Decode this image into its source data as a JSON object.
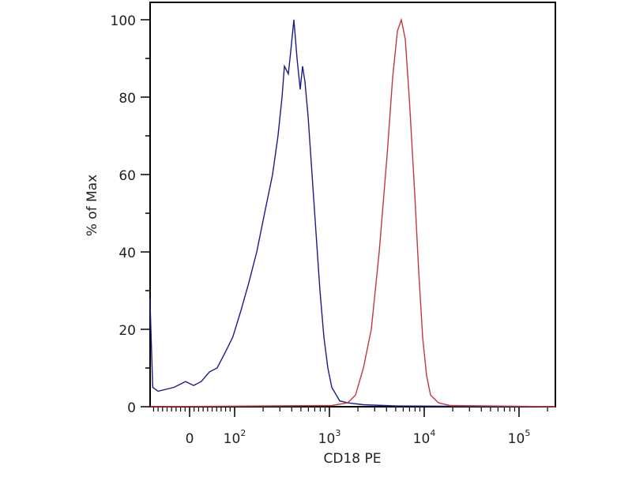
{
  "chart_data": {
    "type": "line",
    "title": "",
    "xlabel": "CD18 PE",
    "ylabel": "% of Max",
    "x_scale": "biexponential (linear near 0, log10 above 10^2)",
    "xlim": [
      -88,
      241500
    ],
    "ylim": [
      0,
      100
    ],
    "grid": false,
    "x_ticks": [
      {
        "value": 0,
        "base": "0",
        "exp": ""
      },
      {
        "value": 100,
        "base": "10",
        "exp": "2"
      },
      {
        "value": 1000,
        "base": "10",
        "exp": "3"
      },
      {
        "value": 10000,
        "base": "10",
        "exp": "4"
      },
      {
        "value": 100000,
        "base": "10",
        "exp": "5"
      }
    ],
    "y_ticks": [
      "0",
      "20",
      "40",
      "60",
      "80",
      "100"
    ],
    "series": [
      {
        "color": "#1a1a8c",
        "points": [
          [
            -88,
            28
          ],
          [
            -82,
            5
          ],
          [
            -70,
            4
          ],
          [
            -35,
            5
          ],
          [
            -9,
            6.5
          ],
          [
            9,
            5.5
          ],
          [
            26,
            6.5
          ],
          [
            44,
            9
          ],
          [
            61,
            10
          ],
          [
            79,
            14
          ],
          [
            96,
            18
          ],
          [
            117,
            25
          ],
          [
            141,
            32
          ],
          [
            171,
            40
          ],
          [
            207,
            50
          ],
          [
            251,
            60
          ],
          [
            287,
            70
          ],
          [
            316,
            80
          ],
          [
            335,
            88
          ],
          [
            369,
            86
          ],
          [
            391,
            92
          ],
          [
            422,
            100
          ],
          [
            455,
            90
          ],
          [
            492,
            82
          ],
          [
            521,
            88
          ],
          [
            552,
            84
          ],
          [
            596,
            75
          ],
          [
            656,
            60
          ],
          [
            721,
            45
          ],
          [
            794,
            30
          ],
          [
            875,
            18
          ],
          [
            962,
            10
          ],
          [
            1059,
            5
          ],
          [
            1284,
            1.5
          ],
          [
            1555,
            1
          ],
          [
            2282,
            0.5
          ],
          [
            4917,
            0.2
          ],
          [
            241500,
            0
          ]
        ]
      },
      {
        "color": "#c0393f",
        "points": [
          [
            -88,
            0
          ],
          [
            1059,
            0.3
          ],
          [
            1555,
            1
          ],
          [
            1884,
            3
          ],
          [
            2282,
            10
          ],
          [
            2765,
            20
          ],
          [
            3350,
            40
          ],
          [
            4056,
            65
          ],
          [
            4642,
            85
          ],
          [
            5208,
            97
          ],
          [
            5730,
            100
          ],
          [
            6310,
            95
          ],
          [
            6950,
            80
          ],
          [
            7943,
            55
          ],
          [
            8750,
            35
          ],
          [
            9620,
            18
          ],
          [
            10590,
            8
          ],
          [
            11660,
            3
          ],
          [
            14130,
            1
          ],
          [
            18840,
            0.3
          ],
          [
            241500,
            0
          ]
        ]
      }
    ]
  }
}
